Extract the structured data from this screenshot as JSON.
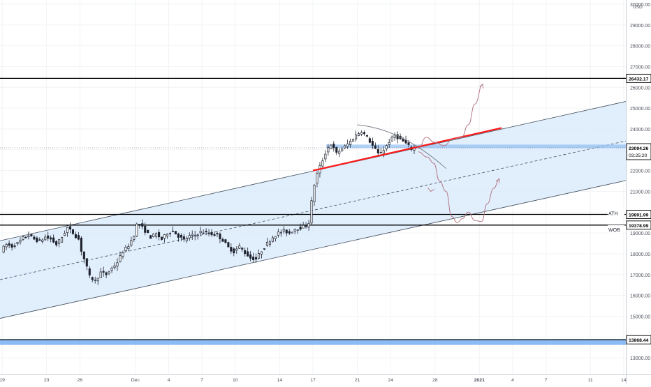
{
  "chart_data": {
    "type": "candlestick",
    "currency": "USD",
    "y_ticks": [
      13000,
      14000,
      15000,
      16000,
      17000,
      18000,
      19000,
      20000,
      21000,
      22000,
      23000,
      24000,
      25000,
      26000,
      27000,
      28000,
      29000,
      30000
    ],
    "y_tick_labels": [
      "13000.00",
      "14000.00",
      "15000.00",
      "16000.00",
      "17000.00",
      "18000.00",
      "19000.00",
      "20000.00",
      "21000.00",
      "22000.00",
      "23000.00",
      "24000.00",
      "25000.00",
      "26000.00",
      "27000.00",
      "28000.00",
      "29000.00",
      "30000.00"
    ],
    "ylim": [
      12200,
      30200
    ],
    "x_ticks": [
      {
        "day": 0,
        "label": "19"
      },
      {
        "day": 4,
        "label": "23"
      },
      {
        "day": 7,
        "label": "26"
      },
      {
        "day": 12,
        "label": "Dec"
      },
      {
        "day": 15,
        "label": "4"
      },
      {
        "day": 18,
        "label": "7"
      },
      {
        "day": 21,
        "label": "10"
      },
      {
        "day": 25,
        "label": "14"
      },
      {
        "day": 28,
        "label": "17"
      },
      {
        "day": 32,
        "label": "21"
      },
      {
        "day": 35,
        "label": "24"
      },
      {
        "day": 39,
        "label": "28"
      },
      {
        "day": 43,
        "label": "2021"
      },
      {
        "day": 46,
        "label": "4"
      },
      {
        "day": 49,
        "label": "7"
      },
      {
        "day": 53,
        "label": "11"
      },
      {
        "day": 56,
        "label": "14"
      }
    ],
    "xlim": [
      -0.2,
      56.2
    ],
    "levels": [
      {
        "value": 26432.17,
        "label": "26432.17",
        "tag": ""
      },
      {
        "value": 19891.99,
        "label": "19891.99",
        "tag": "ATH"
      },
      {
        "value": 19378.99,
        "label": "19378.99",
        "tag": "WOB"
      },
      {
        "value": 13868.44,
        "label": "13868.44",
        "tag": ""
      }
    ],
    "current_price": {
      "value": 23094.26,
      "label": "23094.26",
      "countdown": "03:25:20"
    },
    "channel": {
      "upper": [
        [
          0,
          18650
        ],
        [
          56,
          25300
        ]
      ],
      "lower": [
        [
          0,
          14920
        ],
        [
          56,
          21500
        ]
      ],
      "mid": [
        [
          0,
          16780
        ],
        [
          56,
          23400
        ]
      ]
    },
    "trendline": [
      [
        28,
        22000
      ],
      [
        45,
        24050
      ]
    ],
    "support_zone": [
      23080,
      23250
    ],
    "bottom_zone": [
      13620,
      13900
    ],
    "price_path": [
      [
        0.0,
        18150
      ],
      [
        0.5,
        18450
      ],
      [
        1.0,
        18350
      ],
      [
        1.5,
        18500
      ],
      [
        2.0,
        18750
      ],
      [
        2.5,
        18900
      ],
      [
        3.0,
        18700
      ],
      [
        3.5,
        18600
      ],
      [
        4.0,
        18800
      ],
      [
        4.5,
        18700
      ],
      [
        5.0,
        18450
      ],
      [
        5.5,
        18800
      ],
      [
        6.0,
        19250
      ],
      [
        6.5,
        19000
      ],
      [
        7.0,
        18700
      ],
      [
        7.3,
        18050
      ],
      [
        7.6,
        17600
      ],
      [
        8.0,
        16900
      ],
      [
        8.5,
        16700
      ],
      [
        9.0,
        17100
      ],
      [
        9.5,
        17000
      ],
      [
        10.0,
        17300
      ],
      [
        10.5,
        17600
      ],
      [
        11.0,
        18100
      ],
      [
        11.5,
        18400
      ],
      [
        12.0,
        18900
      ],
      [
        12.3,
        19500
      ],
      [
        12.6,
        19350
      ],
      [
        13.0,
        19100
      ],
      [
        13.5,
        18800
      ],
      [
        14.0,
        18950
      ],
      [
        14.5,
        18700
      ],
      [
        15.0,
        19000
      ],
      [
        15.5,
        19100
      ],
      [
        16.0,
        18850
      ],
      [
        16.5,
        18650
      ],
      [
        17.0,
        18850
      ],
      [
        17.5,
        18900
      ],
      [
        18.0,
        19050
      ],
      [
        18.5,
        19000
      ],
      [
        19.0,
        18950
      ],
      [
        19.5,
        18900
      ],
      [
        20.0,
        18650
      ],
      [
        20.5,
        18300
      ],
      [
        21.0,
        18100
      ],
      [
        21.5,
        18350
      ],
      [
        22.0,
        18050
      ],
      [
        22.5,
        17800
      ],
      [
        23.0,
        17750
      ],
      [
        23.5,
        18150
      ],
      [
        24.0,
        18500
      ],
      [
        24.5,
        18800
      ],
      [
        25.0,
        19000
      ],
      [
        25.5,
        19100
      ],
      [
        26.0,
        19000
      ],
      [
        26.5,
        19200
      ],
      [
        27.0,
        19250
      ],
      [
        27.5,
        19350
      ],
      [
        27.8,
        19550
      ],
      [
        28.0,
        20500
      ],
      [
        28.3,
        21500
      ],
      [
        28.6,
        22000
      ],
      [
        29.0,
        22500
      ],
      [
        29.4,
        23050
      ],
      [
        29.8,
        23300
      ],
      [
        30.2,
        22800
      ],
      [
        30.6,
        23000
      ],
      [
        31.0,
        23150
      ],
      [
        31.5,
        23400
      ],
      [
        32.0,
        23700
      ],
      [
        32.5,
        23900
      ],
      [
        33.0,
        23600
      ],
      [
        33.5,
        23200
      ],
      [
        34.0,
        22800
      ],
      [
        34.5,
        23000
      ],
      [
        35.0,
        23400
      ],
      [
        35.5,
        23700
      ],
      [
        36.0,
        23500
      ],
      [
        36.5,
        23300
      ],
      [
        37.0,
        23050
      ],
      [
        37.4,
        23094
      ]
    ],
    "projections": [
      [
        [
          37.5,
          23050
        ],
        [
          38.2,
          23600
        ],
        [
          39.0,
          23350
        ],
        [
          39.8,
          23200
        ],
        [
          40.6,
          23500
        ],
        [
          41.4,
          23600
        ],
        [
          42.0,
          24200
        ],
        [
          42.6,
          25200
        ],
        [
          43.3,
          26150
        ]
      ],
      [
        [
          37.5,
          22900
        ],
        [
          38.3,
          22650
        ],
        [
          38.9,
          22350
        ],
        [
          39.4,
          21500
        ],
        [
          40.0,
          21000
        ],
        [
          40.5,
          19800
        ],
        [
          41.0,
          19500
        ],
        [
          41.5,
          19700
        ],
        [
          42.0,
          20000
        ],
        [
          42.6,
          19600
        ],
        [
          43.2,
          19550
        ],
        [
          43.7,
          20400
        ],
        [
          44.3,
          21150
        ],
        [
          44.8,
          21600
        ]
      ]
    ],
    "arc": [
      [
        32,
        24200
      ],
      [
        36,
        24000
      ],
      [
        40,
        22100
      ]
    ]
  }
}
